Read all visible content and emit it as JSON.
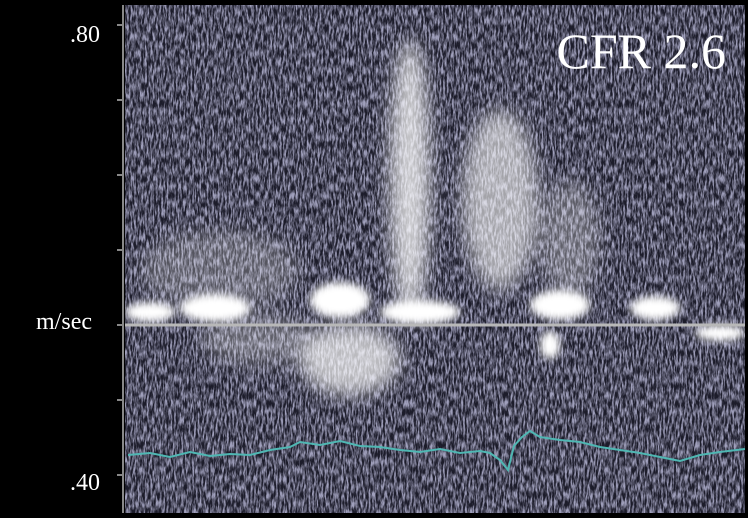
{
  "axis": {
    "top": ".80",
    "unit": "m/sec",
    "bottom": ".40"
  },
  "overlay": "CFR 2.6"
}
